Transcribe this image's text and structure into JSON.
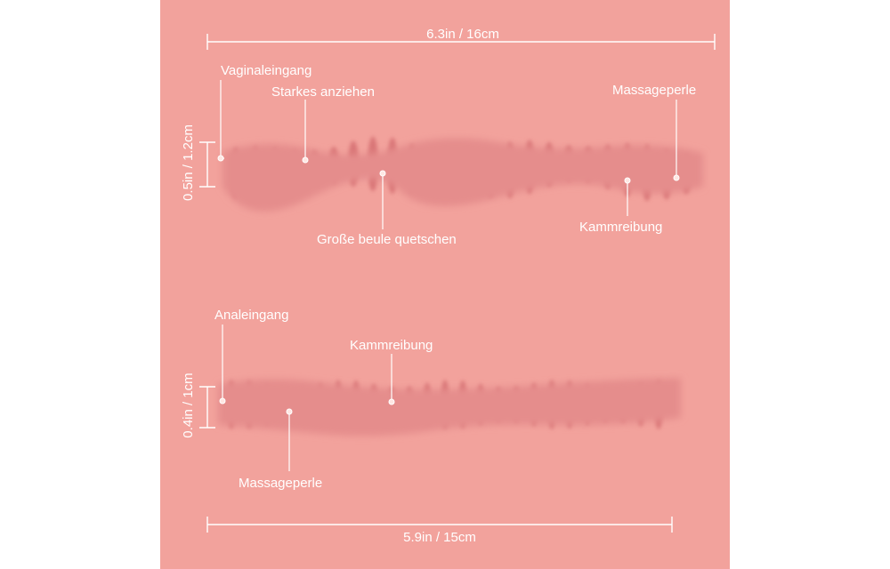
{
  "top_canal": {
    "length": "6.3in / 16cm",
    "diameter": "0.5in / 1.2cm",
    "callouts": [
      "Vaginaleingang",
      "Starkes anziehen",
      "Massageperle",
      "Große beule quetschen",
      "Kammreibung"
    ]
  },
  "bottom_canal": {
    "length": "5.9in / 15cm",
    "diameter": "0.4in / 1cm",
    "callouts": [
      "Analeingang",
      "Kammreibung",
      "Massageperle"
    ]
  }
}
